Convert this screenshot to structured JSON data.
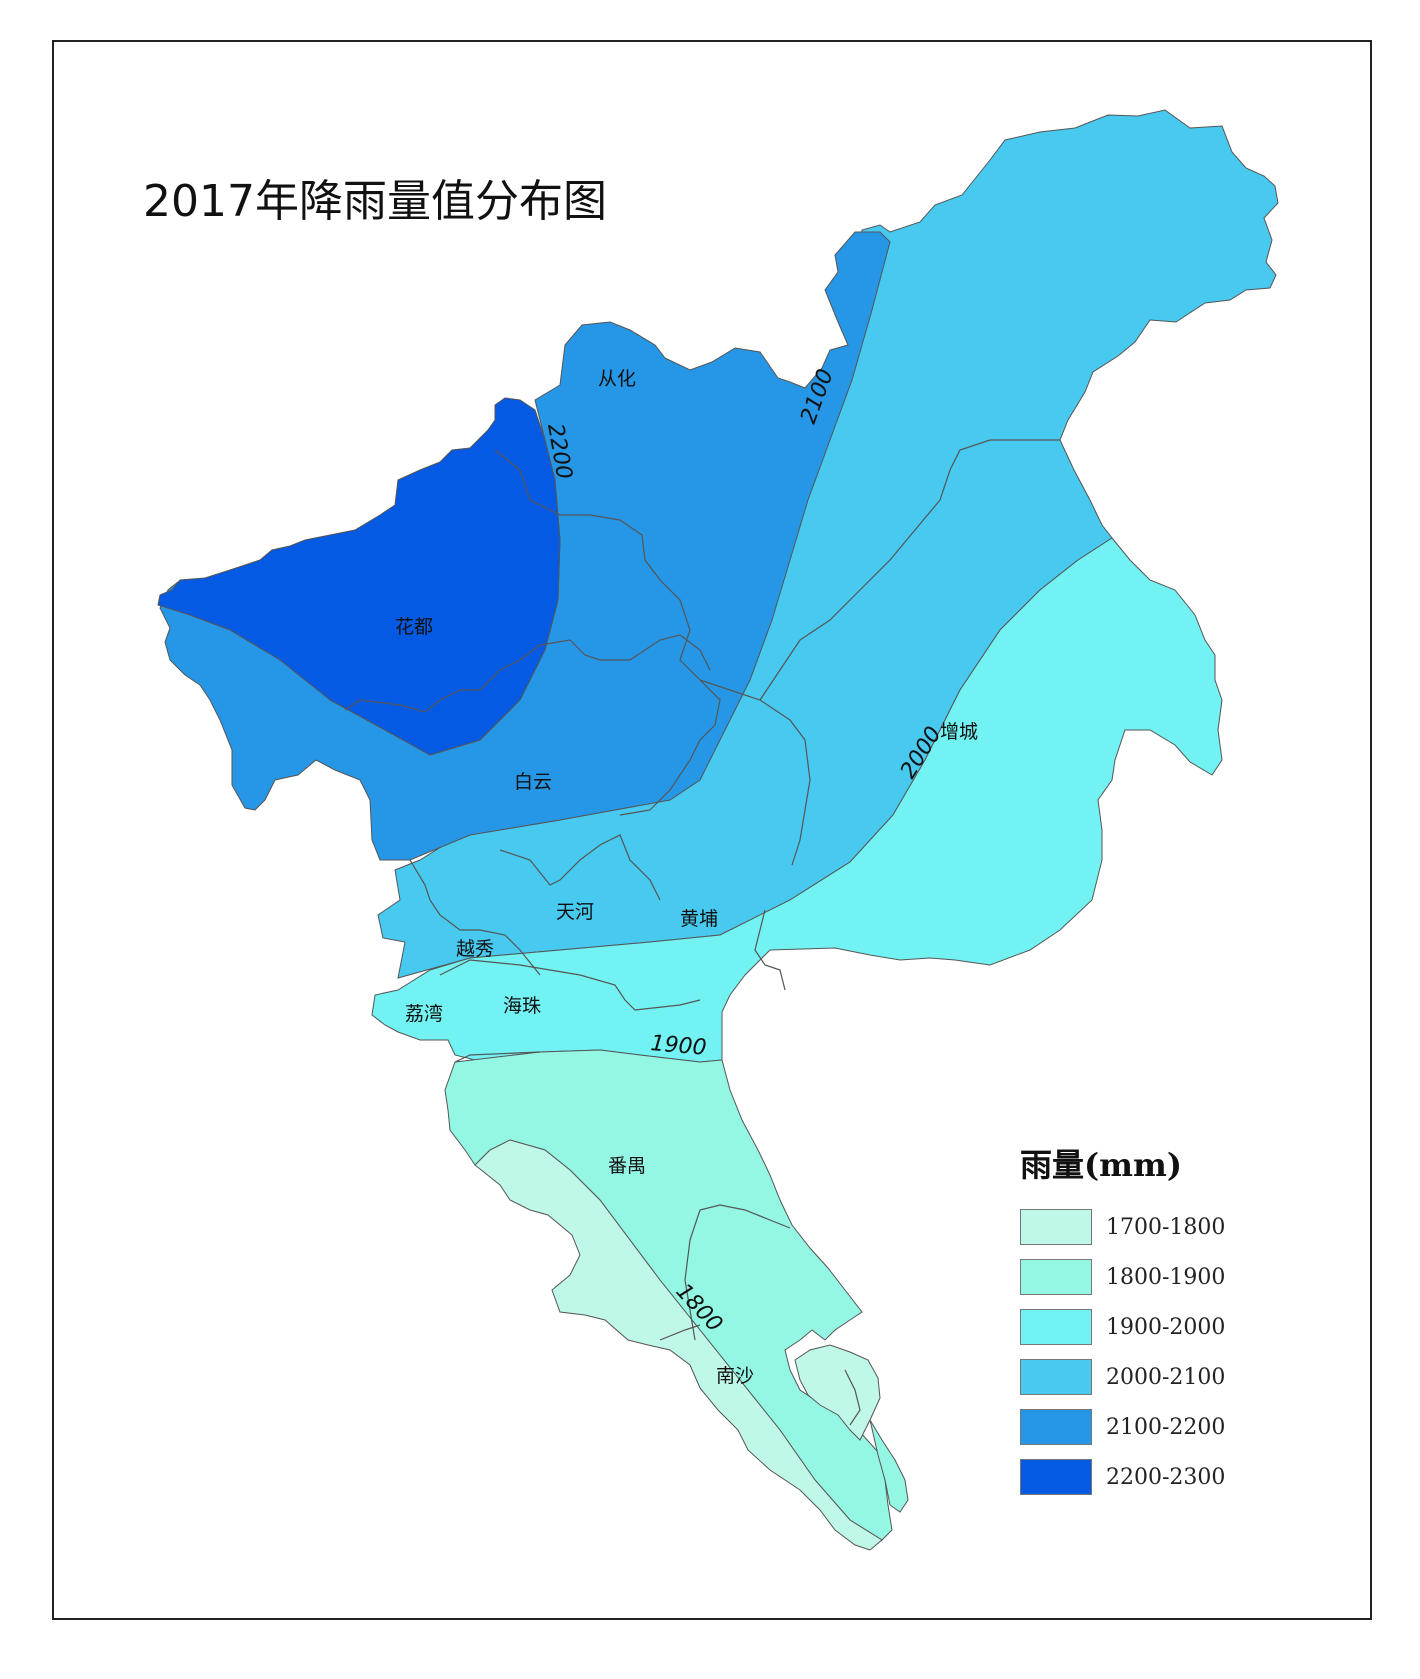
{
  "map": {
    "title": "2017年降雨量值分布图",
    "districts": {
      "conghua": "从化",
      "huadu": "花都",
      "baiyun": "白云",
      "zengcheng": "增城",
      "tianhe": "天河",
      "huangpu": "黄埔",
      "yuexiu": "越秀",
      "liwan": "荔湾",
      "haizhu": "海珠",
      "panyu": "番禺",
      "nansha": "南沙"
    },
    "contours": [
      "2200",
      "2100",
      "2000",
      "1900",
      "1800"
    ],
    "legend": {
      "title": "雨量(mm)",
      "items": [
        {
          "label": "1700-1800",
          "color": "#bff8e8"
        },
        {
          "label": "1800-1900",
          "color": "#94f7e4"
        },
        {
          "label": "1900-2000",
          "color": "#72f2f2"
        },
        {
          "label": "2000-2100",
          "color": "#48c9ef"
        },
        {
          "label": "2100-2200",
          "color": "#2697e6"
        },
        {
          "label": "2200-2300",
          "color": "#055ae3"
        }
      ]
    }
  }
}
